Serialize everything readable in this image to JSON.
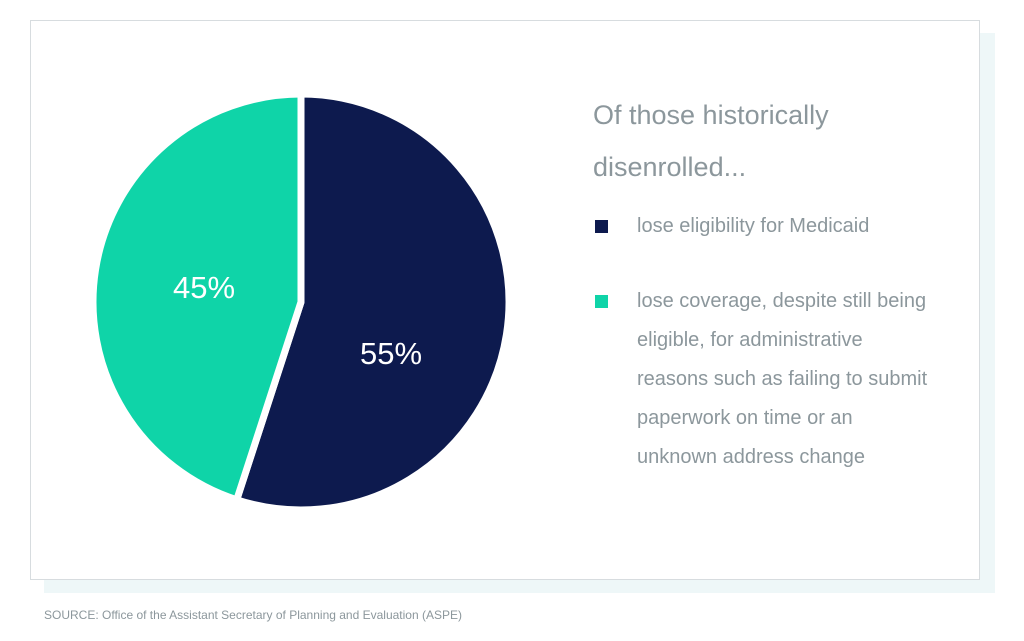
{
  "chart_data": {
    "type": "pie",
    "title": "Of those historically disenrolled...",
    "slices": [
      {
        "label": "lose eligibility for Medicaid",
        "value": 55,
        "display": "55%",
        "color": "#0d1a4e"
      },
      {
        "label": "lose coverage, despite still being eligible, for administrative reasons such as failing to submit paperwork on time or an unknown address change",
        "value": 45,
        "display": "45%",
        "color": "#0fd4a8"
      }
    ],
    "legend_placement": "right"
  },
  "source": "SOURCE:  Office of the Assistant Secretary of Planning and Evaluation (ASPE)",
  "colors": {
    "text_gray": "#8c979c",
    "card_border": "#d7dcdf",
    "shadow": "#eef7f8"
  }
}
